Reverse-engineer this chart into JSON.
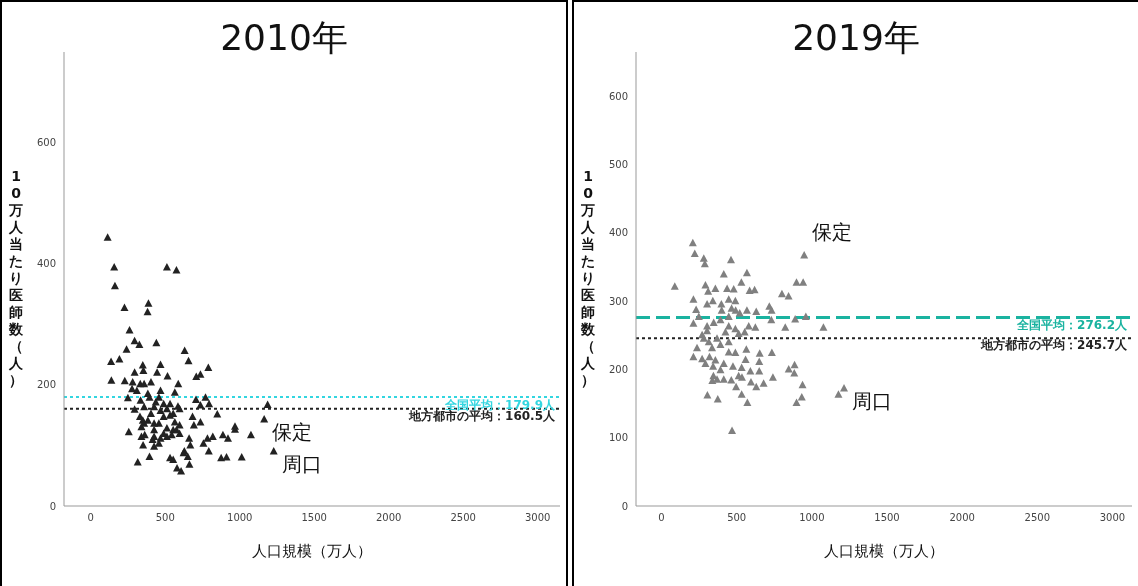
{
  "chart_data": [
    {
      "type": "scatter",
      "title": "2010年",
      "xlabel": "人口規模（万人）",
      "ylabel": "10万人当たり医師数（人）",
      "xlim": [
        -180,
        3150
      ],
      "xticks": [
        0,
        500,
        1000,
        1500,
        2000,
        2500,
        3000
      ],
      "ylim": [
        0,
        750
      ],
      "yticks": [
        0,
        200,
        400,
        600
      ],
      "marker": "triangle",
      "series": [
        {
          "color": "#222222",
          "x": [
            113,
            157,
            162,
            226,
            381,
            387,
            260,
            294,
            326,
            440,
            240,
            511,
            575,
            630,
            656,
            136,
            192,
            349,
            353,
            294,
            468,
            445,
            515,
            789,
            736,
            708,
            138,
            228,
            281,
            332,
            358,
            404,
            587,
            564,
            468,
            249,
            294,
            334,
            394,
            436,
            706,
            770,
            794,
            736,
            849,
            1187,
            1164,
            1075,
            968,
            968,
            921,
            887,
            819,
            783,
            756,
            792,
            875,
            911,
            1013,
            1228,
            683,
            736,
            692,
            585,
            511,
            532,
            553,
            489,
            457,
            596,
            553,
            489,
            425,
            362,
            340,
            349,
            404,
            383,
            425,
            511,
            596,
            660,
            668,
            628,
            651,
            623,
            606,
            579,
            662,
            532,
            553,
            394,
            315,
            351,
            425,
            255,
            340,
            415,
            468,
            511,
            543,
            575,
            564,
            532,
            468,
            425,
            358,
            330,
            358,
            277,
            309,
            383,
            457,
            489,
            596,
            425,
            457
          ],
          "values": [
            443,
            394,
            363,
            327,
            320,
            334,
            290,
            272,
            266,
            269,
            258,
            394,
            389,
            256,
            239,
            238,
            242,
            232,
            223,
            220,
            233,
            220,
            214,
            228,
            217,
            213,
            207,
            206,
            204,
            201,
            201,
            204,
            201,
            187,
            190,
            178,
            159,
            174,
            179,
            171,
            175,
            179,
            168,
            166,
            151,
            167,
            143,
            117,
            131,
            126,
            111,
            117,
            114,
            111,
            103,
            90,
            79,
            80,
            80,
            90,
            147,
            138,
            133,
            164,
            160,
            168,
            152,
            147,
            136,
            133,
            125,
            119,
            114,
            117,
            130,
            141,
            152,
            141,
            136,
            128,
            119,
            111,
            100,
            90,
            81,
            87,
            57,
            62,
            68,
            79,
            76,
            81,
            72,
            100,
            98,
            122,
            114,
            109,
            111,
            114,
            117,
            125,
            138,
            149,
            157,
            163,
            163,
            147,
            136,
            193,
            190,
            185,
            179,
            168,
            160,
            125,
            103
          ]
        }
      ],
      "ref_lines": [
        {
          "axis": "y",
          "value": 179.9,
          "label": "全国平均：179.9人",
          "color": "#33d6e0",
          "line_style": "dotted"
        },
        {
          "axis": "y",
          "value": 160.5,
          "label": "地方都市の平均：160.5人",
          "color": "#222222",
          "line_style": "dotted"
        }
      ],
      "annotations": [
        {
          "text": "保定",
          "x": 1164,
          "y": 143
        },
        {
          "text": "周口",
          "x": 1228,
          "y": 90
        }
      ]
    },
    {
      "type": "scatter",
      "title": "2019年",
      "xlabel": "人口規模（万人）",
      "ylabel": "10万人当たり医師数（人）",
      "xlim": [
        -170,
        3130
      ],
      "xticks": [
        0,
        500,
        1000,
        1500,
        2000,
        2500,
        3000
      ],
      "ylim": [
        0,
        665
      ],
      "yticks": [
        0,
        100,
        200,
        300,
        400,
        500,
        600
      ],
      "marker": "triangle",
      "series": [
        {
          "color": "#808080",
          "x": [
            208,
            221,
            281,
            288,
            88,
            292,
            310,
            358,
            414,
            462,
            568,
            436,
            480,
            531,
            586,
            619,
            212,
            230,
            212,
            341,
            398,
            447,
            491,
            400,
            466,
            520,
            568,
            630,
            717,
            732,
            801,
            845,
            898,
            942,
            949,
            960,
            889,
            823,
            730,
            1077,
            734,
            653,
            650,
            564,
            559,
            491,
            447,
            533,
            475,
            414,
            358,
            319,
            236,
            212,
            314,
            369,
            425,
            513,
            580,
            624,
            303,
            347,
            392,
            447,
            491,
            553,
            336,
            392,
            447,
            343,
            392,
            345,
            338,
            414,
            464,
            513,
            535,
            591,
            650,
            595,
            630,
            679,
            741,
            846,
            885,
            883,
            938,
            933,
            898,
            1177,
            1214,
            305,
            374,
            496,
            533,
            571,
            469,
            303,
            248,
            270,
            281,
            292,
            270,
            369,
            447,
            493,
            303
          ],
          "values": [
            385,
            369,
            362,
            354,
            321,
            323,
            314,
            318,
            339,
            360,
            341,
            318,
            317,
            327,
            315,
            316,
            302,
            287,
            267,
            300,
            295,
            302,
            300,
            286,
            289,
            282,
            286,
            284,
            292,
            286,
            310,
            307,
            327,
            327,
            367,
            277,
            273,
            261,
            272,
            261,
            224,
            223,
            211,
            229,
            214,
            224,
            225,
            202,
            204,
            208,
            213,
            218,
            231,
            218,
            240,
            245,
            254,
            252,
            263,
            261,
            256,
            268,
            272,
            263,
            259,
            254,
            231,
            236,
            240,
            204,
            199,
            190,
            183,
            185,
            184,
            190,
            188,
            197,
            197,
            181,
            174,
            179,
            188,
            200,
            206,
            194,
            177,
            159,
            151,
            163,
            172,
            162,
            156,
            174,
            163,
            151,
            110,
            295,
            277,
            250,
            245,
            208,
            215,
            185,
            277,
            286,
            263
          ]
        }
      ],
      "ref_lines": [
        {
          "axis": "y",
          "value": 276.2,
          "label": "全国平均：276.2人",
          "color": "#1ab3a0",
          "line_style": "dashed"
        },
        {
          "axis": "y",
          "value": 245.7,
          "label": "地方都市の平均：245.7人",
          "color": "#222222",
          "line_style": "dotted"
        }
      ],
      "annotations": [
        {
          "text": "保定",
          "x": 949,
          "y": 367
        },
        {
          "text": "周口",
          "x": 1214,
          "y": 172
        }
      ]
    }
  ]
}
